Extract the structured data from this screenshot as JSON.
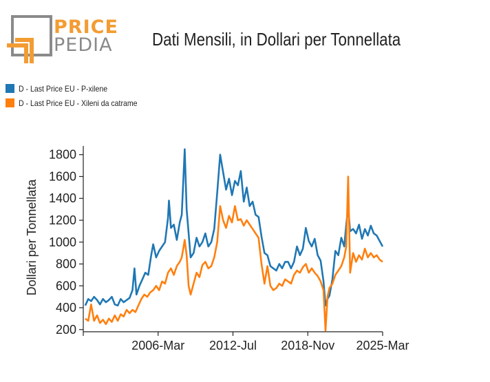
{
  "header": {
    "logo_line1": "PRICE",
    "logo_line2": "PEDIA",
    "title": "Dati Mensili, in Dollari per Tonnellata"
  },
  "colors": {
    "series1": "#1f77b4",
    "series2": "#ff7f0e",
    "logo_orange": "#f39c33",
    "logo_gray": "#8a8a8a"
  },
  "chart_data": {
    "type": "line",
    "title": "Dati Mensili, in Dollari per Tonnellata",
    "ylabel": "Dollari per Tonnellata",
    "xlabel": "",
    "ylim": [
      180,
      1880
    ],
    "yticks": [
      200,
      400,
      600,
      800,
      1000,
      1200,
      1400,
      1600,
      1800
    ],
    "xticks": [
      "2006-Mar",
      "2012-Jul",
      "2018-Nov",
      "2025-Mar"
    ],
    "legend_position": "top-left",
    "grid": false,
    "series": [
      {
        "name": "D - Last Price EU - P-xilene",
        "color": "#1f77b4",
        "points": [
          [
            "2000-01",
            420
          ],
          [
            "2000-04",
            480
          ],
          [
            "2000-07",
            460
          ],
          [
            "2000-10",
            500
          ],
          [
            "2001-01",
            470
          ],
          [
            "2001-04",
            430
          ],
          [
            "2001-07",
            480
          ],
          [
            "2001-10",
            450
          ],
          [
            "2002-01",
            470
          ],
          [
            "2002-04",
            500
          ],
          [
            "2002-07",
            430
          ],
          [
            "2002-10",
            420
          ],
          [
            "2003-01",
            480
          ],
          [
            "2003-04",
            450
          ],
          [
            "2003-07",
            470
          ],
          [
            "2003-10",
            490
          ],
          [
            "2004-01",
            560
          ],
          [
            "2004-03",
            760
          ],
          [
            "2004-05",
            520
          ],
          [
            "2004-08",
            600
          ],
          [
            "2004-11",
            660
          ],
          [
            "2005-02",
            720
          ],
          [
            "2005-05",
            700
          ],
          [
            "2005-08",
            880
          ],
          [
            "2005-10",
            980
          ],
          [
            "2006-01",
            860
          ],
          [
            "2006-04",
            920
          ],
          [
            "2006-07",
            960
          ],
          [
            "2006-10",
            1000
          ],
          [
            "2007-01",
            1220
          ],
          [
            "2007-02",
            1380
          ],
          [
            "2007-04",
            1130
          ],
          [
            "2007-07",
            1160
          ],
          [
            "2007-10",
            1020
          ],
          [
            "2008-01",
            1180
          ],
          [
            "2008-03",
            1250
          ],
          [
            "2008-06",
            1850
          ],
          [
            "2008-08",
            1300
          ],
          [
            "2008-10",
            1080
          ],
          [
            "2008-12",
            860
          ],
          [
            "2009-03",
            900
          ],
          [
            "2009-06",
            1040
          ],
          [
            "2009-09",
            960
          ],
          [
            "2009-12",
            1000
          ],
          [
            "2010-03",
            1080
          ],
          [
            "2010-06",
            960
          ],
          [
            "2010-09",
            1000
          ],
          [
            "2010-12",
            1120
          ],
          [
            "2011-03",
            1450
          ],
          [
            "2011-06",
            1800
          ],
          [
            "2011-09",
            1640
          ],
          [
            "2011-12",
            1480
          ],
          [
            "2012-03",
            1580
          ],
          [
            "2012-06",
            1430
          ],
          [
            "2012-09",
            1560
          ],
          [
            "2012-12",
            1520
          ],
          [
            "2013-03",
            1650
          ],
          [
            "2013-06",
            1370
          ],
          [
            "2013-09",
            1500
          ],
          [
            "2013-12",
            1330
          ],
          [
            "2014-03",
            1370
          ],
          [
            "2014-06",
            1250
          ],
          [
            "2014-09",
            1230
          ],
          [
            "2014-12",
            1050
          ],
          [
            "2015-03",
            900
          ],
          [
            "2015-06",
            880
          ],
          [
            "2015-09",
            780
          ],
          [
            "2015-12",
            760
          ],
          [
            "2016-03",
            740
          ],
          [
            "2016-06",
            800
          ],
          [
            "2016-09",
            760
          ],
          [
            "2016-12",
            820
          ],
          [
            "2017-03",
            820
          ],
          [
            "2017-06",
            760
          ],
          [
            "2017-09",
            820
          ],
          [
            "2017-12",
            960
          ],
          [
            "2018-03",
            880
          ],
          [
            "2018-06",
            940
          ],
          [
            "2018-09",
            1130
          ],
          [
            "2018-12",
            1010
          ],
          [
            "2019-03",
            960
          ],
          [
            "2019-06",
            1030
          ],
          [
            "2019-09",
            880
          ],
          [
            "2019-12",
            830
          ],
          [
            "2020-03",
            640
          ],
          [
            "2020-05",
            420
          ],
          [
            "2020-07",
            480
          ],
          [
            "2020-09",
            510
          ],
          [
            "2020-12",
            660
          ],
          [
            "2021-03",
            920
          ],
          [
            "2021-06",
            880
          ],
          [
            "2021-09",
            1040
          ],
          [
            "2021-12",
            960
          ],
          [
            "2022-02",
            1160
          ],
          [
            "2022-04",
            1320
          ],
          [
            "2022-06",
            1100
          ],
          [
            "2022-09",
            1120
          ],
          [
            "2022-12",
            1080
          ],
          [
            "2023-03",
            1160
          ],
          [
            "2023-06",
            1030
          ],
          [
            "2023-09",
            1120
          ],
          [
            "2023-12",
            1060
          ],
          [
            "2024-03",
            1150
          ],
          [
            "2024-06",
            1080
          ],
          [
            "2024-09",
            1060
          ],
          [
            "2024-12",
            1010
          ],
          [
            "2025-03",
            960
          ]
        ]
      },
      {
        "name": "D - Last Price EU - Xileni da catrame",
        "color": "#ff7f0e",
        "points": [
          [
            "2000-01",
            300
          ],
          [
            "2000-04",
            280
          ],
          [
            "2000-07",
            430
          ],
          [
            "2000-10",
            280
          ],
          [
            "2001-01",
            330
          ],
          [
            "2001-04",
            260
          ],
          [
            "2001-07",
            290
          ],
          [
            "2001-10",
            250
          ],
          [
            "2002-01",
            300
          ],
          [
            "2002-04",
            270
          ],
          [
            "2002-07",
            330
          ],
          [
            "2002-10",
            280
          ],
          [
            "2003-01",
            340
          ],
          [
            "2003-04",
            320
          ],
          [
            "2003-07",
            380
          ],
          [
            "2003-10",
            350
          ],
          [
            "2004-01",
            380
          ],
          [
            "2004-04",
            360
          ],
          [
            "2004-07",
            420
          ],
          [
            "2004-10",
            480
          ],
          [
            "2005-01",
            520
          ],
          [
            "2005-04",
            500
          ],
          [
            "2005-07",
            540
          ],
          [
            "2005-10",
            560
          ],
          [
            "2006-01",
            600
          ],
          [
            "2006-04",
            560
          ],
          [
            "2006-07",
            640
          ],
          [
            "2006-10",
            620
          ],
          [
            "2007-01",
            720
          ],
          [
            "2007-04",
            760
          ],
          [
            "2007-07",
            700
          ],
          [
            "2007-10",
            780
          ],
          [
            "2008-01",
            820
          ],
          [
            "2008-03",
            860
          ],
          [
            "2008-06",
            1020
          ],
          [
            "2008-08",
            880
          ],
          [
            "2008-10",
            600
          ],
          [
            "2008-12",
            520
          ],
          [
            "2009-03",
            620
          ],
          [
            "2009-06",
            720
          ],
          [
            "2009-09",
            680
          ],
          [
            "2009-12",
            790
          ],
          [
            "2010-03",
            820
          ],
          [
            "2010-06",
            760
          ],
          [
            "2010-09",
            780
          ],
          [
            "2010-12",
            860
          ],
          [
            "2011-03",
            1000
          ],
          [
            "2011-06",
            1330
          ],
          [
            "2011-09",
            1200
          ],
          [
            "2011-12",
            1130
          ],
          [
            "2012-03",
            1240
          ],
          [
            "2012-06",
            1180
          ],
          [
            "2012-09",
            1330
          ],
          [
            "2012-12",
            1200
          ],
          [
            "2013-03",
            1210
          ],
          [
            "2013-06",
            1150
          ],
          [
            "2013-09",
            1200
          ],
          [
            "2013-12",
            1160
          ],
          [
            "2014-03",
            1120
          ],
          [
            "2014-06",
            1080
          ],
          [
            "2014-09",
            1040
          ],
          [
            "2014-12",
            800
          ],
          [
            "2015-03",
            620
          ],
          [
            "2015-06",
            780
          ],
          [
            "2015-09",
            600
          ],
          [
            "2015-12",
            560
          ],
          [
            "2016-03",
            580
          ],
          [
            "2016-06",
            620
          ],
          [
            "2016-09",
            600
          ],
          [
            "2016-12",
            660
          ],
          [
            "2017-03",
            640
          ],
          [
            "2017-06",
            620
          ],
          [
            "2017-09",
            700
          ],
          [
            "2017-12",
            740
          ],
          [
            "2018-03",
            720
          ],
          [
            "2018-06",
            770
          ],
          [
            "2018-09",
            800
          ],
          [
            "2018-12",
            720
          ],
          [
            "2019-03",
            760
          ],
          [
            "2019-06",
            720
          ],
          [
            "2019-09",
            690
          ],
          [
            "2019-12",
            640
          ],
          [
            "2020-03",
            560
          ],
          [
            "2020-05",
            190
          ],
          [
            "2020-07",
            500
          ],
          [
            "2020-09",
            580
          ],
          [
            "2020-12",
            620
          ],
          [
            "2021-03",
            700
          ],
          [
            "2021-06",
            740
          ],
          [
            "2021-09",
            780
          ],
          [
            "2021-12",
            860
          ],
          [
            "2022-02",
            960
          ],
          [
            "2022-04",
            1600
          ],
          [
            "2022-06",
            720
          ],
          [
            "2022-09",
            900
          ],
          [
            "2022-12",
            820
          ],
          [
            "2023-03",
            880
          ],
          [
            "2023-06",
            840
          ],
          [
            "2023-09",
            940
          ],
          [
            "2023-12",
            860
          ],
          [
            "2024-03",
            900
          ],
          [
            "2024-06",
            860
          ],
          [
            "2024-09",
            880
          ],
          [
            "2024-12",
            840
          ],
          [
            "2025-03",
            820
          ]
        ]
      }
    ]
  }
}
